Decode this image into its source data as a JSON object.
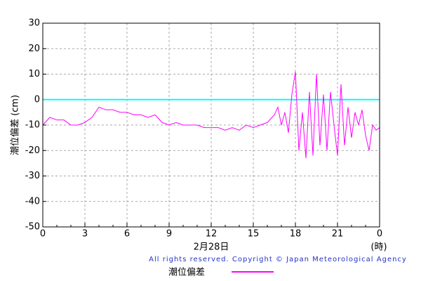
{
  "chart_data": {
    "type": "line",
    "y_label": "潮位偏差 (cm)",
    "x_label": "2月28日",
    "x_unit": "(時)",
    "copyright": "All rights reserved. Copyright © Japan Meteorological Agency",
    "xlim": [
      0,
      24
    ],
    "xticks": [
      0,
      3,
      6,
      9,
      12,
      15,
      18,
      21,
      {
        "value": 24,
        "label": "0"
      }
    ],
    "x_minor_ticks": [
      1,
      2,
      4,
      5,
      7,
      8,
      10,
      11,
      13,
      14,
      16,
      17,
      19,
      20,
      22,
      23
    ],
    "ylim": [
      -50,
      30
    ],
    "yticks": [
      -50,
      -40,
      -30,
      -20,
      -10,
      0,
      10,
      20,
      30
    ],
    "grid": true,
    "reference_line": {
      "value": 0,
      "color": "#00ffff"
    },
    "series": [
      {
        "name": "潮位偏差",
        "color": "#ff00ff",
        "x": [
          0,
          0.5,
          1,
          1.5,
          2,
          2.5,
          3,
          3.5,
          4,
          4.5,
          5,
          5.5,
          6,
          6.5,
          7,
          7.5,
          8,
          8.5,
          9,
          9.5,
          10,
          10.5,
          11,
          11.5,
          12,
          12.5,
          13,
          13.5,
          14,
          14.5,
          15,
          15.5,
          16,
          16.5,
          16.75,
          17,
          17.25,
          17.5,
          17.75,
          18,
          18.25,
          18.5,
          18.75,
          19,
          19.25,
          19.5,
          19.75,
          20,
          20.25,
          20.5,
          20.75,
          21,
          21.25,
          21.5,
          21.75,
          22,
          22.25,
          22.5,
          22.75,
          23,
          23.25,
          23.5,
          23.75,
          24
        ],
        "values": [
          -10,
          -7,
          -8,
          -8,
          -10,
          -10,
          -9,
          -7,
          -3,
          -4,
          -4,
          -5,
          -5,
          -6,
          -6,
          -7,
          -6,
          -9,
          -10,
          -9,
          -10,
          -10,
          -10,
          -11,
          -11,
          -11,
          -12,
          -11,
          -12,
          -10,
          -11,
          -10,
          -9,
          -6,
          -3,
          -10,
          -5,
          -13,
          2,
          11,
          -20,
          -5,
          -23,
          3,
          -22,
          10,
          -18,
          2,
          -20,
          3,
          -10,
          -22,
          6,
          -18,
          -3,
          -15,
          -5,
          -10,
          -4,
          -14,
          -20,
          -10,
          -12,
          -11
        ]
      }
    ]
  }
}
